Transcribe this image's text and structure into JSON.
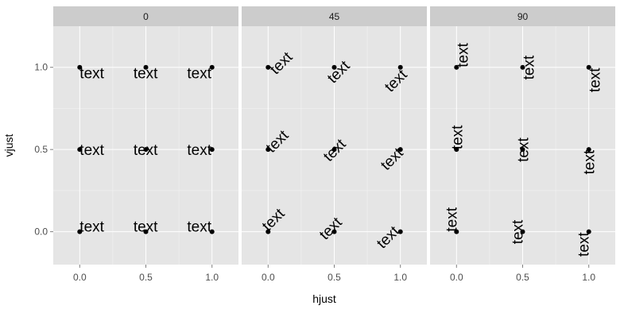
{
  "chart_data": {
    "type": "scatter",
    "xlabel": "hjust",
    "ylabel": "vjust",
    "xlim": [
      -0.2,
      1.2
    ],
    "ylim": [
      -0.2,
      1.25
    ],
    "x_ticks": [
      0.0,
      0.5,
      1.0
    ],
    "x_tick_labels": [
      "0.0",
      "0.5",
      "1.0"
    ],
    "y_ticks": [
      0.0,
      0.5,
      1.0
    ],
    "y_tick_labels": [
      "0.0",
      "0.5",
      "1.0"
    ],
    "grid": true,
    "point_label": "text",
    "panels": [
      {
        "facet": "0",
        "angle": 0
      },
      {
        "facet": "45",
        "angle": 45
      },
      {
        "facet": "90",
        "angle": 90
      }
    ],
    "points": [
      {
        "hjust": 0.0,
        "vjust": 0.0
      },
      {
        "hjust": 0.5,
        "vjust": 0.0
      },
      {
        "hjust": 1.0,
        "vjust": 0.0
      },
      {
        "hjust": 0.0,
        "vjust": 0.5
      },
      {
        "hjust": 0.5,
        "vjust": 0.5
      },
      {
        "hjust": 1.0,
        "vjust": 0.5
      },
      {
        "hjust": 0.0,
        "vjust": 1.0
      },
      {
        "hjust": 0.5,
        "vjust": 1.0
      },
      {
        "hjust": 1.0,
        "vjust": 1.0
      }
    ]
  },
  "colors": {
    "panel_background": "#e5e5e5",
    "strip_background": "#cccccc",
    "grid_major": "#ffffff",
    "grid_minor": "#f2f2f2",
    "point": "#000000"
  }
}
